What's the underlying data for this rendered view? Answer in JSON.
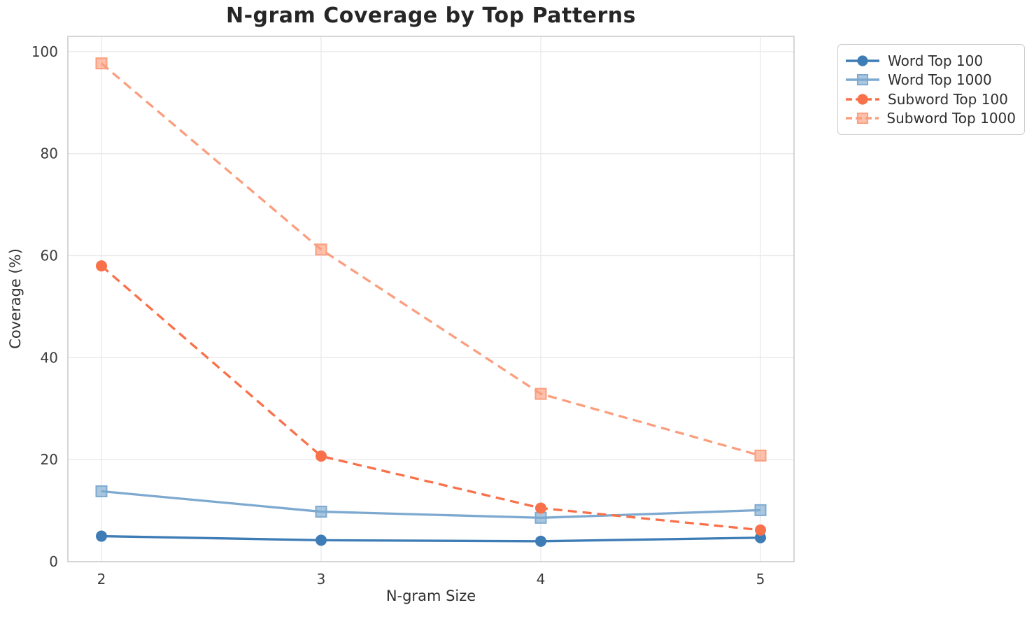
{
  "chart_data": {
    "type": "line",
    "title": "N-gram Coverage by Top Patterns",
    "xlabel": "N-gram Size",
    "ylabel": "Coverage (%)",
    "x": [
      2,
      3,
      4,
      5
    ],
    "xticks": [
      "2",
      "3",
      "4",
      "5"
    ],
    "yticks": [
      0,
      20,
      40,
      60,
      80,
      100
    ],
    "ylim": [
      0,
      103
    ],
    "grid": true,
    "legend_position": "outside-top-right",
    "series": [
      {
        "name": "Word Top 100",
        "color": "#3e7cb6",
        "marker": "circle",
        "dash": "solid",
        "values": [
          5.0,
          4.2,
          4.0,
          4.7
        ]
      },
      {
        "name": "Word Top 1000",
        "color": "#7da9d0",
        "marker": "square",
        "dash": "solid",
        "values": [
          13.8,
          9.8,
          8.6,
          10.1
        ]
      },
      {
        "name": "Subword Top 100",
        "color": "#f8714a",
        "marker": "circle",
        "dash": "dashed",
        "values": [
          58.0,
          20.7,
          10.5,
          6.2
        ]
      },
      {
        "name": "Subword Top 1000",
        "color": "#fb9e7e",
        "marker": "square",
        "dash": "dashed",
        "values": [
          97.7,
          61.2,
          32.9,
          20.8
        ]
      }
    ]
  }
}
